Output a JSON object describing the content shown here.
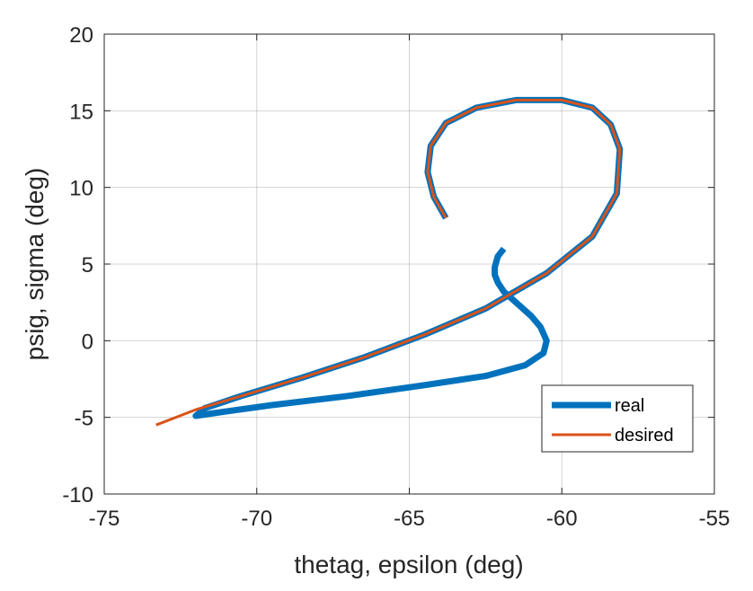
{
  "chart_data": {
    "type": "line",
    "title": "",
    "xlabel": "thetag, epsilon (deg)",
    "ylabel": "psig, sigma (deg)",
    "xlim": [
      -75,
      -55
    ],
    "ylim": [
      -10,
      20
    ],
    "xticks": [
      -75,
      -70,
      -65,
      -60,
      -55
    ],
    "yticks": [
      -10,
      -5,
      0,
      5,
      10,
      15,
      20
    ],
    "xtick_labels": [
      "-75",
      "-70",
      "-65",
      "-60",
      "-55"
    ],
    "ytick_labels": [
      "-10",
      "-5",
      "0",
      "5",
      "10",
      "15",
      "20"
    ],
    "grid": true,
    "legend_position": "bottom-right",
    "series": [
      {
        "name": "real",
        "color": "#0072BD",
        "x": [
          -61.9,
          -62.1,
          -62.2,
          -62.2,
          -62.1,
          -61.9,
          -61.5,
          -61.0,
          -60.7,
          -60.5,
          -60.6,
          -61.2,
          -62.5,
          -64.5,
          -67.0,
          -69.5,
          -71.3,
          -72.0,
          -71.7,
          -70.5,
          -68.5,
          -66.5,
          -64.5,
          -62.5,
          -60.5,
          -59.0,
          -58.2,
          -58.1,
          -58.4,
          -59.0,
          -60.0,
          -61.5,
          -62.8,
          -63.8,
          -64.3,
          -64.4,
          -64.2,
          -63.8
        ],
        "y": [
          6.0,
          5.5,
          4.8,
          4.3,
          3.8,
          3.2,
          2.5,
          1.6,
          0.9,
          0.0,
          -0.8,
          -1.6,
          -2.3,
          -2.9,
          -3.6,
          -4.2,
          -4.7,
          -4.9,
          -4.4,
          -3.6,
          -2.4,
          -1.1,
          0.4,
          2.1,
          4.4,
          6.8,
          9.6,
          12.5,
          14.1,
          15.2,
          15.7,
          15.7,
          15.2,
          14.2,
          12.7,
          11.0,
          9.4,
          8.0
        ]
      },
      {
        "name": "desired",
        "color": "#D95319",
        "x": [
          -73.3,
          -72.0,
          -70.5,
          -68.5,
          -66.5,
          -64.5,
          -62.5,
          -60.5,
          -59.0,
          -58.2,
          -58.1,
          -58.4,
          -59.0,
          -60.0,
          -61.5,
          -62.8,
          -63.8,
          -64.3,
          -64.4,
          -64.2,
          -63.8
        ],
        "y": [
          -5.5,
          -4.5,
          -3.6,
          -2.4,
          -1.1,
          0.4,
          2.1,
          4.4,
          6.8,
          9.6,
          12.5,
          14.1,
          15.2,
          15.7,
          15.7,
          15.2,
          14.2,
          12.7,
          11.0,
          9.4,
          8.0
        ]
      }
    ]
  }
}
